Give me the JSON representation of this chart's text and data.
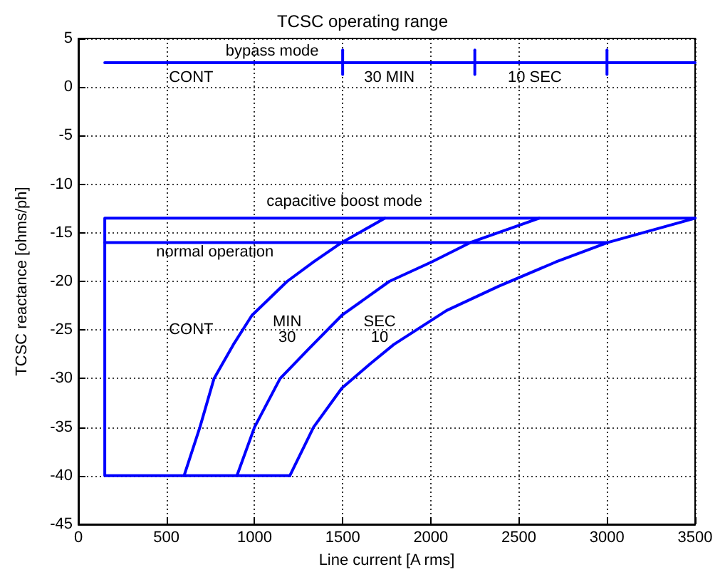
{
  "chart_data": {
    "type": "line",
    "title": "TCSC operating range",
    "xlabel": "Line current [A rms]",
    "ylabel": "TCSC reactance [ohms/ph]",
    "xlim": [
      0,
      3500
    ],
    "xticks": [
      0,
      500,
      1000,
      1500,
      2000,
      2500,
      3000,
      3500
    ],
    "ylim": [
      -45,
      5
    ],
    "yticks": [
      -45,
      -40,
      -35,
      -30,
      -25,
      -20,
      -15,
      -10,
      -5,
      0,
      5
    ],
    "grid": true,
    "marker": "none",
    "line_style": "solid",
    "series": [
      {
        "color": "#0000ff",
        "x": [
          3500,
          150,
          150,
          1200
        ],
        "values": [
          -13.5,
          -13.5,
          -40,
          -40
        ]
      },
      {
        "color": "#0000ff",
        "x": [
          150,
          3000
        ],
        "values": [
          -16,
          -16
        ]
      },
      {
        "color": "#0000ff",
        "x": [
          150,
          3500
        ],
        "values": [
          2.5,
          2.5
        ]
      },
      {
        "color": "#0000ff",
        "x": [
          1500,
          1500
        ],
        "values": [
          1.3,
          3.8
        ]
      },
      {
        "color": "#0000ff",
        "x": [
          2250,
          2250
        ],
        "values": [
          1.3,
          3.8
        ]
      },
      {
        "color": "#0000ff",
        "x": [
          3000,
          3000
        ],
        "values": [
          1.3,
          3.8
        ]
      },
      {
        "color": "#0000ff",
        "x": [
          600,
          690,
          770,
          880,
          985,
          1185,
          1335,
          1495,
          1740
        ],
        "values": [
          -40,
          -35,
          -30,
          -26.5,
          -23.5,
          -20,
          -18,
          -16,
          -13.5
        ]
      },
      {
        "color": "#0000ff",
        "x": [
          900,
          1000,
          1145,
          1305,
          1495,
          1765,
          2005,
          2225,
          2615
        ],
        "values": [
          -40,
          -35,
          -30,
          -27,
          -23.5,
          -20,
          -18,
          -16,
          -13.5
        ]
      },
      {
        "color": "#0000ff",
        "x": [
          1200,
          1335,
          1495,
          1655,
          1790,
          2090,
          2385,
          2710,
          3005,
          3500
        ],
        "values": [
          -40,
          -35,
          -31,
          -28.5,
          -26.5,
          -23,
          -20.5,
          -18,
          -16,
          -13.5
        ]
      }
    ],
    "annotations": [
      "bypass mode",
      "CONT",
      "30 MIN",
      "10 SEC",
      "capacitive boost mode",
      "normal operation",
      "CONT",
      "MIN\n30",
      "SEC\n10"
    ]
  }
}
